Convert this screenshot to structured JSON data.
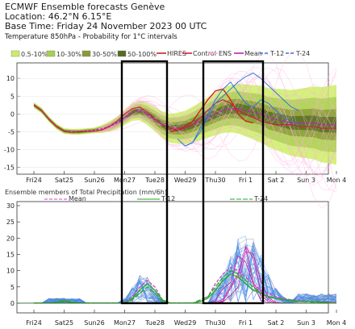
{
  "header": {
    "title": "ECMWF Ensemble forecasts Genève",
    "location": "Location: 46.2°N 6.15°E",
    "base_time": "Base Time: Friday 24 November 2023 00 UTC",
    "subtitle": "Temperature 850hPa - Probability for 1°C intervals"
  },
  "colors": {
    "p0_10": "#ccee66",
    "p10_30": "#a8d050",
    "p30_50": "#8a9a3a",
    "p50_100": "#556b22",
    "hires": "#cc2222",
    "control": "#cc2244",
    "ens": "#ffaadd",
    "mean": "#bb22bb",
    "t12": "#3377dd",
    "t24": "#3377dd",
    "precip_mean": "#cc44cc",
    "precip_t12": "#22aa22",
    "precip_t24": "#22aa22"
  },
  "legend_top": {
    "prob": [
      "0.5-10%",
      "10-30%",
      "30-50%",
      "50-100%"
    ],
    "lines": [
      "HIRES",
      "Control",
      "ENS",
      "Mean",
      "T-12",
      "T-24"
    ]
  },
  "legend_bottom": {
    "title": "Ensemble members of Total Precipitation (mm/6h)",
    "lines": [
      "Mean",
      "T-12",
      "T-24"
    ]
  },
  "x_ticks": [
    {
      "label": "Fri24",
      "red": false
    },
    {
      "label": "Sat25",
      "red": false
    },
    {
      "label": "Sun26",
      "red": true
    },
    {
      "label": "Mon27",
      "red": false
    },
    {
      "label": "Tue28",
      "red": false
    },
    {
      "label": "Wed29",
      "red": false
    },
    {
      "label": "Thu30",
      "red": false
    },
    {
      "label": "Fri 1",
      "red": false
    },
    {
      "label": "Sat 2",
      "red": false
    },
    {
      "label": "Sun 3",
      "red": true
    },
    {
      "label": "Mon 4",
      "red": false
    }
  ],
  "chart_data": [
    {
      "type": "line",
      "title": "Temperature 850hPa - Probability for 1°C intervals",
      "xlabel": "",
      "ylabel": "",
      "x": [
        0,
        0.25,
        0.5,
        0.75,
        1,
        1.25,
        1.5,
        1.75,
        2,
        2.25,
        2.5,
        2.75,
        3,
        3.25,
        3.5,
        3.75,
        4,
        4.25,
        4.5,
        4.75,
        5,
        5.25,
        5.5,
        5.75,
        6,
        6.25,
        6.5,
        6.75,
        7,
        7.25,
        7.5,
        7.75,
        8,
        8.25,
        8.5,
        8.75,
        9,
        9.25,
        9.5,
        9.75,
        10
      ],
      "ylim": [
        -16,
        13
      ],
      "yticks": [
        10,
        5,
        0,
        -5,
        -10,
        -15
      ],
      "series": [
        {
          "name": "Mean",
          "values": [
            2.5,
            1,
            -1.5,
            -3.5,
            -4.8,
            -5,
            -5,
            -4.8,
            -4.6,
            -4.2,
            -3.5,
            -2.5,
            -1,
            0.5,
            1,
            0,
            -1.5,
            -3,
            -4,
            -4,
            -3.8,
            -3,
            -2,
            -1,
            0,
            1,
            1.5,
            1.5,
            1,
            0.5,
            0,
            -1,
            -1.5,
            -2,
            -2.5,
            -2.5,
            -2.5,
            -2.5,
            -3,
            -3,
            -3
          ]
        },
        {
          "name": "HIRES",
          "values": [
            null,
            null,
            null,
            null,
            null,
            null,
            null,
            null,
            null,
            null,
            null,
            null,
            null,
            null,
            null,
            null,
            null,
            null,
            -5,
            -4.5,
            -3.5,
            -2,
            1,
            4,
            6.5,
            7,
            4,
            0,
            -2,
            -2.5,
            null,
            null,
            null,
            null,
            null,
            null,
            null,
            null,
            null,
            null,
            null
          ]
        },
        {
          "name": "Control",
          "values": [
            2.5,
            1,
            -1.5,
            -3.5,
            -4.8,
            -5.2,
            -5,
            -5,
            -4.8,
            -4.5,
            -3.5,
            -2,
            0,
            1.5,
            2,
            0.5,
            -1.5,
            -3,
            -4,
            -4.5,
            -4,
            -3,
            -1,
            1,
            3,
            4,
            3,
            1,
            0,
            -1,
            -2,
            -2.5,
            -3,
            -3,
            -3,
            -3.5,
            -3.5,
            -3.5,
            -4,
            -4,
            -4
          ]
        },
        {
          "name": "T-12",
          "values": [
            null,
            null,
            null,
            null,
            null,
            null,
            null,
            null,
            null,
            null,
            null,
            null,
            null,
            null,
            null,
            null,
            null,
            null,
            null,
            -7,
            -9,
            -8,
            -5,
            -1,
            3,
            5,
            7,
            9,
            10.5,
            11.5,
            10,
            8,
            6,
            4,
            2,
            1,
            null,
            null,
            null,
            null,
            null
          ]
        },
        {
          "name": "T-24",
          "values": [
            null,
            null,
            null,
            null,
            null,
            null,
            null,
            null,
            null,
            null,
            null,
            null,
            null,
            null,
            null,
            null,
            null,
            null,
            null,
            null,
            -9,
            -8,
            -4,
            0,
            4,
            7,
            9,
            6,
            3,
            2,
            4,
            3,
            1,
            -1,
            -2,
            -3,
            null,
            null,
            null,
            null,
            null
          ]
        }
      ]
    },
    {
      "type": "line",
      "title": "Ensemble members of Total Precipitation (mm/6h)",
      "xlabel": "",
      "ylabel": "",
      "x": [
        0,
        0.25,
        0.5,
        0.75,
        1,
        1.25,
        1.5,
        1.75,
        2,
        2.25,
        2.5,
        2.75,
        3,
        3.25,
        3.5,
        3.75,
        4,
        4.25,
        4.5,
        4.75,
        5,
        5.25,
        5.5,
        5.75,
        6,
        6.25,
        6.5,
        6.75,
        7,
        7.25,
        7.5,
        7.75,
        8,
        8.25,
        8.5,
        8.75,
        9,
        9.25,
        9.5,
        9.75,
        10
      ],
      "ylim": [
        -2,
        30
      ],
      "yticks": [
        30,
        25,
        20,
        15,
        10,
        5,
        0
      ],
      "series": [
        {
          "name": "Mean",
          "values": [
            0,
            0,
            0,
            0.3,
            0.5,
            0.2,
            0,
            0,
            0,
            0,
            0,
            0,
            0,
            2,
            5,
            7,
            5,
            1,
            0,
            0,
            0,
            0,
            0.5,
            2,
            6,
            9,
            11,
            10,
            8,
            6,
            4,
            3,
            2,
            1.5,
            1,
            1,
            0.5,
            0.5,
            0.5,
            0.3,
            0.2
          ]
        },
        {
          "name": "T-12",
          "values": [
            0,
            0,
            0,
            0.3,
            0.8,
            0.3,
            0,
            0,
            0,
            0,
            0,
            0,
            0,
            1.5,
            4,
            6,
            4,
            1,
            0,
            0,
            0,
            0,
            0.5,
            1.5,
            4,
            7,
            9,
            8,
            6,
            4,
            3,
            2,
            1.5,
            1,
            1,
            0.5,
            0.5,
            0.5,
            0.3,
            0.2,
            0.2
          ]
        },
        {
          "name": "T-24",
          "values": [
            0,
            0,
            0,
            0.2,
            0.5,
            0.2,
            0,
            0,
            0,
            0,
            0,
            0,
            0,
            1,
            3,
            5,
            3,
            0.5,
            0,
            0,
            0,
            0,
            1,
            2,
            5,
            8,
            10,
            9,
            7,
            5,
            3,
            2,
            1.5,
            1,
            0.8,
            0.5,
            0.5,
            0.3,
            0.3,
            0.2,
            0.2
          ]
        }
      ]
    }
  ]
}
